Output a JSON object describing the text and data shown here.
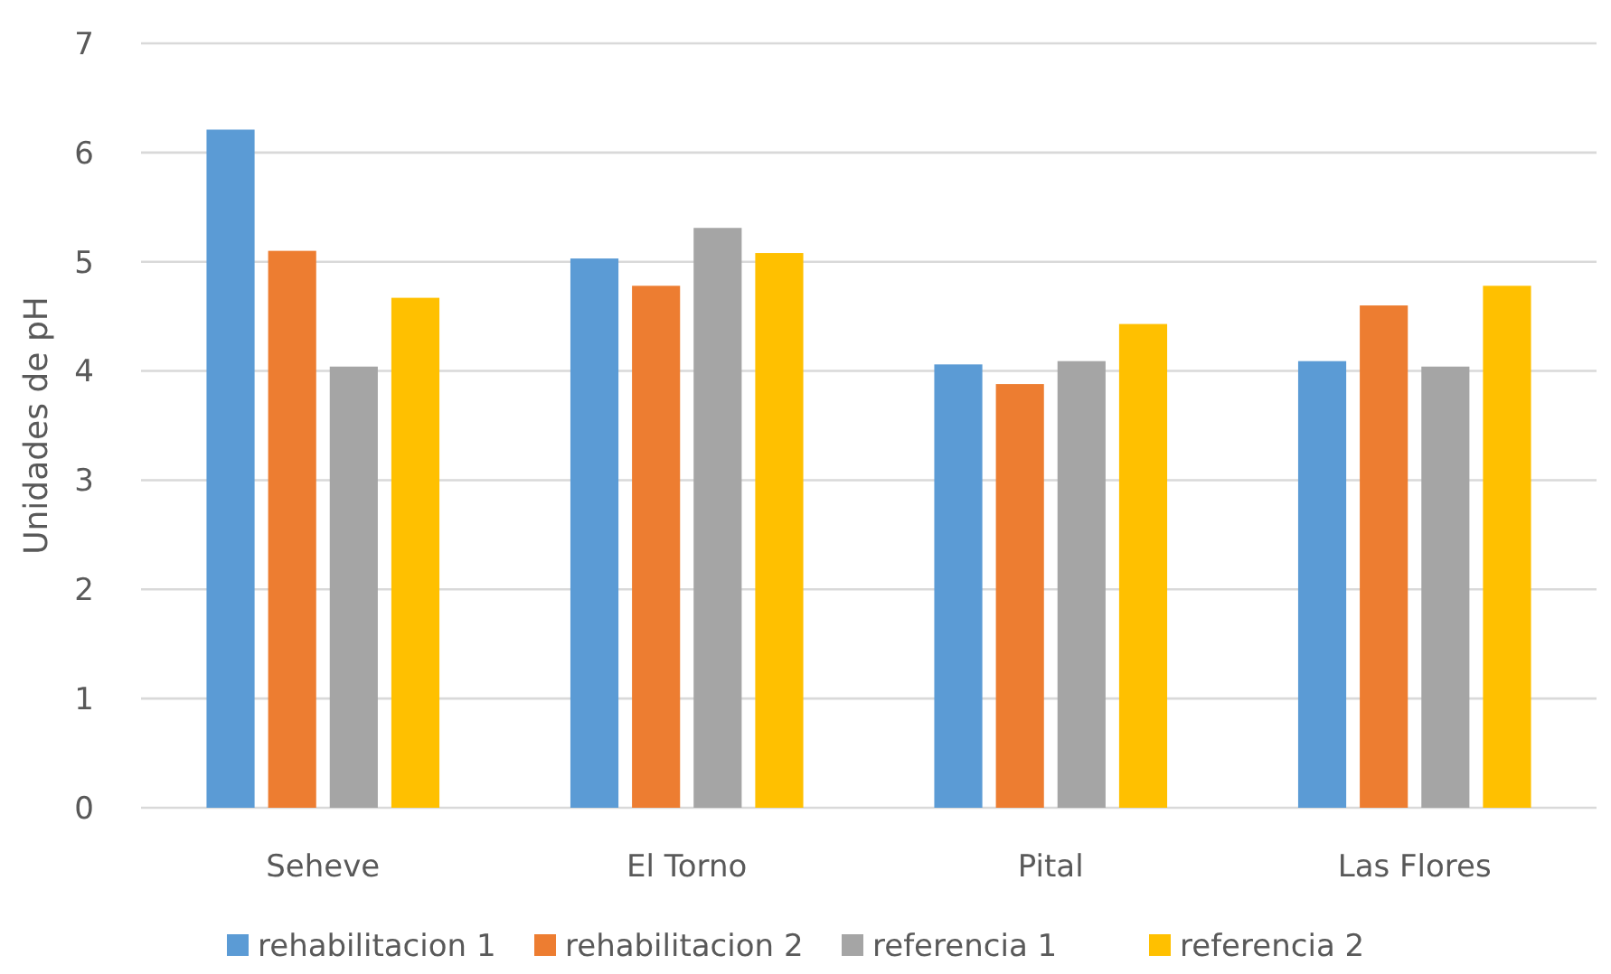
{
  "chart_data": {
    "type": "bar",
    "ylabel": "Unidades de pH",
    "categories": [
      "Seheve",
      "El Torno",
      "Pital",
      "Las Flores"
    ],
    "series": [
      {
        "name": "rehabilitacion 1",
        "color": "#5b9bd5",
        "values": [
          6.21,
          5.03,
          4.06,
          4.09
        ]
      },
      {
        "name": "rehabilitacion 2",
        "color": "#ed7d31",
        "values": [
          5.1,
          4.78,
          3.88,
          4.6
        ]
      },
      {
        "name": "referencia 1",
        "color": "#a5a5a5",
        "values": [
          4.04,
          5.31,
          4.09,
          4.04
        ]
      },
      {
        "name": "referencia 2",
        "color": "#ffc000",
        "values": [
          4.67,
          5.08,
          4.43,
          4.78
        ]
      }
    ],
    "ylim": [
      0,
      7
    ],
    "yticks": [
      0,
      1,
      2,
      3,
      4,
      5,
      6,
      7
    ],
    "grid": "y",
    "legend": "bottom"
  }
}
